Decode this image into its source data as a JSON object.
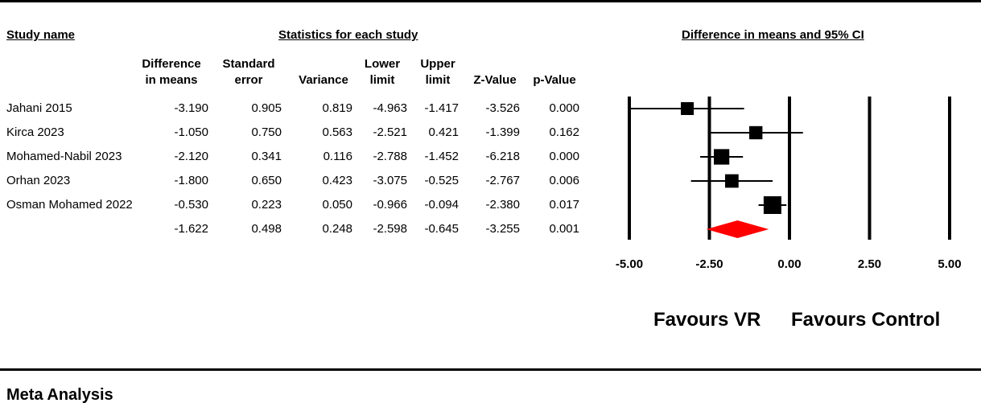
{
  "headers": {
    "study_name": "Study name",
    "statistics": "Statistics for each study",
    "plot": "Difference in means and 95% CI"
  },
  "columns": [
    [
      "Difference",
      "in means"
    ],
    [
      "Standard",
      "error"
    ],
    [
      "",
      "Variance"
    ],
    [
      "Lower",
      "limit"
    ],
    [
      "Upper",
      "limit"
    ],
    [
      "",
      "Z-Value"
    ],
    [
      "",
      "p-Value"
    ]
  ],
  "rows": [
    {
      "study": "Jahani 2015",
      "values": [
        "-3.190",
        "0.905",
        "0.819",
        "-4.963",
        "-1.417",
        "-3.526",
        "0.000"
      ]
    },
    {
      "study": "Kirca 2023",
      "values": [
        "-1.050",
        "0.750",
        "0.563",
        "-2.521",
        "0.421",
        "-1.399",
        "0.162"
      ]
    },
    {
      "study": "Mohamed-Nabil 2023",
      "values": [
        "-2.120",
        "0.341",
        "0.116",
        "-2.788",
        "-1.452",
        "-6.218",
        "0.000"
      ]
    },
    {
      "study": "Orhan 2023",
      "values": [
        "-1.800",
        "0.650",
        "0.423",
        "-3.075",
        "-0.525",
        "-2.767",
        "0.006"
      ]
    },
    {
      "study": "Osman Mohamed 2022",
      "values": [
        "-0.530",
        "0.223",
        "0.050",
        "-0.966",
        "-0.094",
        "-2.380",
        "0.017"
      ]
    },
    {
      "study": "",
      "values": [
        "-1.622",
        "0.498",
        "0.248",
        "-2.598",
        "-0.645",
        "-3.255",
        "0.001"
      ]
    }
  ],
  "chart_data": {
    "type": "forest",
    "xlim": [
      -5,
      5
    ],
    "ticks": [
      -5,
      -2.5,
      0,
      2.5,
      5
    ],
    "tick_labels": [
      "-5.00",
      "-2.50",
      "0.00",
      "2.50",
      "5.00"
    ],
    "studies": [
      {
        "name": "Jahani 2015",
        "estimate": -3.19,
        "lower": -4.963,
        "upper": -1.417,
        "weight": 0.819
      },
      {
        "name": "Kirca 2023",
        "estimate": -1.05,
        "lower": -2.521,
        "upper": 0.421,
        "weight": 0.563
      },
      {
        "name": "Mohamed-Nabil 2023",
        "estimate": -2.12,
        "lower": -2.788,
        "upper": -1.452,
        "weight": 0.116
      },
      {
        "name": "Orhan 2023",
        "estimate": -1.8,
        "lower": -3.075,
        "upper": -0.525,
        "weight": 0.423
      },
      {
        "name": "Osman Mohamed 2022",
        "estimate": -0.53,
        "lower": -0.966,
        "upper": -0.094,
        "weight": 0.05
      }
    ],
    "summary": {
      "estimate": -1.622,
      "lower": -2.598,
      "upper": -0.645
    },
    "summary_color": "#ff0000",
    "favours_left": "Favours VR",
    "favours_right": "Favours Control"
  },
  "footer": "Meta Analysis"
}
